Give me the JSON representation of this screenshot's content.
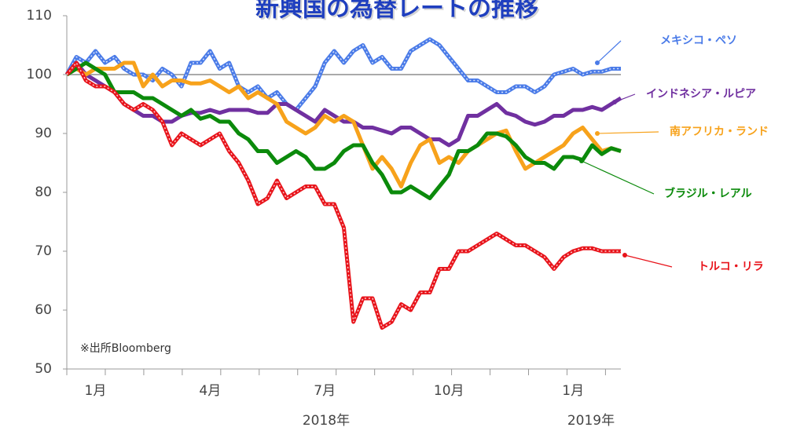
{
  "chart_data": {
    "type": "line",
    "title": "新興国の為替レートの推移",
    "note": "※出所Bloomberg",
    "categories": [
      null,
      null,
      null,
      "1月",
      null,
      null,
      null,
      null,
      null,
      null,
      null,
      null,
      null,
      null,
      null,
      "4月",
      null,
      null,
      null,
      null,
      null,
      null,
      null,
      null,
      null,
      null,
      null,
      "7月",
      null,
      null,
      null,
      null,
      null,
      null,
      null,
      null,
      null,
      null,
      null,
      null,
      "10月",
      null,
      null,
      null,
      null,
      null,
      null,
      null,
      null,
      null,
      null,
      null,
      null,
      "1月",
      null,
      null,
      null,
      null,
      null
    ],
    "x_groups": [
      "2018年",
      "2019年"
    ],
    "ylim": [
      50,
      110
    ],
    "yticks": [
      50,
      60,
      70,
      80,
      90,
      100,
      110
    ],
    "reference_line": 100,
    "series": [
      {
        "name": "メキシコ・ペソ",
        "color": "#4a7be8",
        "values": [
          100,
          103,
          102,
          104,
          102,
          103,
          101,
          100,
          100,
          99,
          101,
          100,
          98,
          102,
          102,
          104,
          101,
          102,
          98,
          97,
          98,
          96,
          97,
          95,
          94,
          96,
          98,
          102,
          104,
          102,
          104,
          105,
          102,
          103,
          101,
          101,
          104,
          105,
          106,
          105,
          103,
          101,
          99,
          99,
          98,
          97,
          97,
          98,
          98,
          97,
          98,
          100,
          100.5,
          101,
          100,
          100.5,
          100.5,
          101,
          101
        ]
      },
      {
        "name": "インドネシア・ルピア",
        "color": "#7030a0",
        "values": [
          100,
          102,
          100,
          99,
          98,
          97,
          95,
          94,
          93,
          93,
          92,
          92,
          93,
          93.5,
          93.5,
          94,
          93.5,
          94,
          94,
          94,
          93.5,
          93.5,
          95,
          95,
          94,
          93,
          92,
          94,
          93,
          92,
          92,
          91,
          91,
          90.5,
          90,
          91,
          91,
          90,
          89,
          89,
          88,
          89,
          93,
          93,
          94,
          95,
          93.5,
          93,
          92,
          91.5,
          92,
          93,
          93,
          94,
          94,
          94.5,
          94,
          95,
          96
        ]
      },
      {
        "name": "南アフリカ・ランド",
        "color": "#f7a21b",
        "values": [
          100,
          101,
          100,
          101,
          101,
          101,
          102,
          102,
          98,
          100,
          98,
          99,
          99,
          98.5,
          98.5,
          99,
          98,
          97,
          98,
          96,
          97,
          96,
          95,
          92,
          91,
          90,
          91,
          93,
          92,
          93,
          92,
          88,
          84,
          86,
          84,
          81,
          85,
          88,
          89,
          85,
          86,
          85,
          87,
          88,
          89,
          90,
          90.5,
          87,
          84,
          85,
          86,
          87,
          88,
          90,
          91,
          89,
          87,
          87.5,
          87
        ]
      },
      {
        "name": "ブラジル・レアル",
        "color": "#0b8a0b",
        "values": [
          100,
          101,
          102,
          101,
          100,
          97,
          97,
          97,
          96,
          96,
          95,
          94,
          93,
          94,
          92.5,
          93,
          92,
          92,
          90,
          89,
          87,
          87,
          85,
          86,
          87,
          86,
          84,
          84,
          85,
          87,
          88,
          88,
          85,
          83,
          80,
          80,
          81,
          80,
          79,
          81,
          83,
          87,
          87,
          88,
          90,
          90,
          89.5,
          88,
          86,
          85,
          85,
          84,
          86,
          86,
          85.5,
          88,
          86.5,
          87.5,
          87
        ]
      },
      {
        "name": "トルコ・リラ",
        "color": "#e8141b",
        "values": [
          100,
          102,
          99,
          98,
          98,
          97,
          95,
          94,
          95,
          94,
          92,
          88,
          90,
          89,
          88,
          89,
          90,
          87,
          85,
          82,
          78,
          79,
          82,
          79,
          80,
          81,
          81,
          78,
          78,
          74,
          58,
          62,
          62,
          57,
          58,
          61,
          60,
          63,
          63,
          67,
          67,
          70,
          70,
          71,
          72,
          73,
          72,
          71,
          71,
          70,
          69,
          67,
          69,
          70,
          70.5,
          70.5,
          70,
          70,
          70
        ]
      }
    ]
  }
}
